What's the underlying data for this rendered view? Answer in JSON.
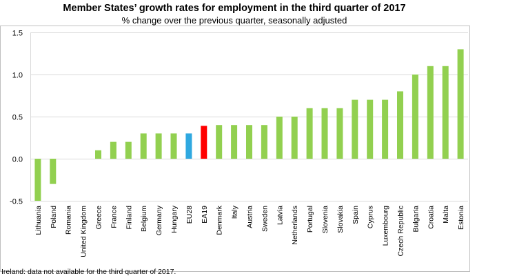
{
  "chart_data": {
    "type": "bar",
    "title": "Member States’ growth rates for employment in the third quarter of 2017",
    "subtitle": "% change over the previous quarter, seasonally adjusted",
    "xlabel": "",
    "ylabel": "",
    "ylim": [
      -0.5,
      1.5
    ],
    "yticks": [
      "1.5",
      "1.0",
      "0.5",
      "0.0",
      "-0.5"
    ],
    "ytick_values": [
      1.5,
      1.0,
      0.5,
      0.0,
      -0.5
    ],
    "grid": true,
    "categories": [
      "Lithuania",
      "Poland",
      "Romania",
      "United Kingdom",
      "Greece",
      "France",
      "Finland",
      "Belgium",
      "Germany",
      "Hungary",
      "EU28",
      "EA19",
      "Denmark",
      "Italy",
      "Austria",
      "Sweden",
      "Latvia",
      "Netherlands",
      "Portugal",
      "Slovenia",
      "Slovakia",
      "Spain",
      "Cyprus",
      "Luxembourg",
      "Czech Republic",
      "Bulgaria",
      "Croatia",
      "Malta",
      "Estonia"
    ],
    "values": [
      -0.5,
      -0.3,
      0.0,
      0.0,
      0.1,
      0.2,
      0.2,
      0.3,
      0.3,
      0.3,
      0.3,
      0.39,
      0.4,
      0.4,
      0.4,
      0.4,
      0.5,
      0.5,
      0.6,
      0.6,
      0.6,
      0.7,
      0.7,
      0.7,
      0.8,
      1.0,
      1.1,
      1.1,
      1.3
    ],
    "highlights": {
      "EU28": "#2fa8e0",
      "EA19": "#ff0000"
    },
    "default_color": "#92d050",
    "footnote": "Ireland: data not available for the third quarter of 2017."
  }
}
